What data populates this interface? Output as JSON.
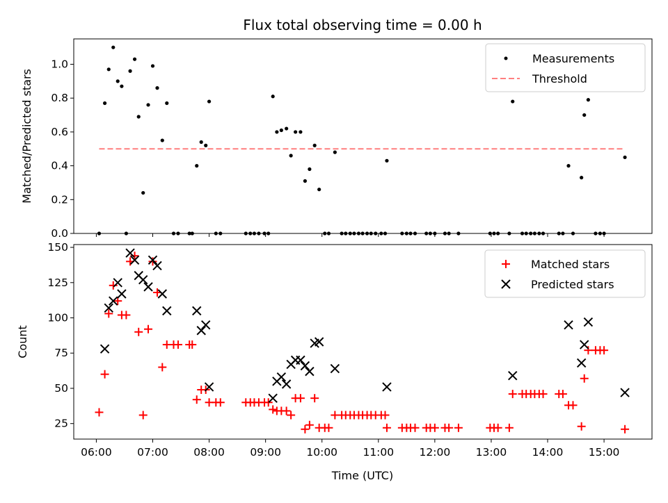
{
  "chart_data": [
    {
      "type": "scatter",
      "title": "Flux total observing time = 0.00 h",
      "xlabel": "",
      "ylabel": "Matched/Predicted stars",
      "xlim": [
        5.6,
        15.85
      ],
      "ylim": [
        0,
        1.15
      ],
      "yticks": [
        0.0,
        0.2,
        0.4,
        0.6,
        0.8,
        1.0
      ],
      "yticklabels": [
        "0.0",
        "0.2",
        "0.4",
        "0.6",
        "0.8",
        "1.0"
      ],
      "legend_position": "top-right",
      "series": [
        {
          "name": "Measurements",
          "kind": "scatter",
          "color": "#000000",
          "marker": "dot",
          "points": [
            [
              6.05,
              0.0
            ],
            [
              6.15,
              0.77
            ],
            [
              6.22,
              0.97
            ],
            [
              6.3,
              1.1
            ],
            [
              6.38,
              0.9
            ],
            [
              6.45,
              0.87
            ],
            [
              6.53,
              0.0
            ],
            [
              6.6,
              0.96
            ],
            [
              6.68,
              1.03
            ],
            [
              6.75,
              0.69
            ],
            [
              6.83,
              0.24
            ],
            [
              6.92,
              0.76
            ],
            [
              7.0,
              0.99
            ],
            [
              7.08,
              0.86
            ],
            [
              7.17,
              0.55
            ],
            [
              7.25,
              0.77
            ],
            [
              7.37,
              0.0
            ],
            [
              7.45,
              0.0
            ],
            [
              7.65,
              0.0
            ],
            [
              7.7,
              0.0
            ],
            [
              7.78,
              0.4
            ],
            [
              7.86,
              0.54
            ],
            [
              7.94,
              0.52
            ],
            [
              8.0,
              0.78
            ],
            [
              8.12,
              0.0
            ],
            [
              8.2,
              0.0
            ],
            [
              8.65,
              0.0
            ],
            [
              8.73,
              0.0
            ],
            [
              8.8,
              0.0
            ],
            [
              8.88,
              0.0
            ],
            [
              8.98,
              0.0
            ],
            [
              9.05,
              0.0
            ],
            [
              9.13,
              0.81
            ],
            [
              9.2,
              0.6
            ],
            [
              9.28,
              0.61
            ],
            [
              9.37,
              0.62
            ],
            [
              9.45,
              0.46
            ],
            [
              9.53,
              0.6
            ],
            [
              9.62,
              0.6
            ],
            [
              9.7,
              0.31
            ],
            [
              9.78,
              0.38
            ],
            [
              9.87,
              0.52
            ],
            [
              9.95,
              0.26
            ],
            [
              10.05,
              0.0
            ],
            [
              10.12,
              0.0
            ],
            [
              10.23,
              0.48
            ],
            [
              10.35,
              0.0
            ],
            [
              10.42,
              0.0
            ],
            [
              10.5,
              0.0
            ],
            [
              10.57,
              0.0
            ],
            [
              10.65,
              0.0
            ],
            [
              10.72,
              0.0
            ],
            [
              10.8,
              0.0
            ],
            [
              10.87,
              0.0
            ],
            [
              10.95,
              0.0
            ],
            [
              11.05,
              0.0
            ],
            [
              11.12,
              0.0
            ],
            [
              11.15,
              0.43
            ],
            [
              11.42,
              0.0
            ],
            [
              11.5,
              0.0
            ],
            [
              11.57,
              0.0
            ],
            [
              11.65,
              0.0
            ],
            [
              11.85,
              0.0
            ],
            [
              11.92,
              0.0
            ],
            [
              12.0,
              0.0
            ],
            [
              12.18,
              0.0
            ],
            [
              12.25,
              0.0
            ],
            [
              12.42,
              0.0
            ],
            [
              12.98,
              0.0
            ],
            [
              13.05,
              0.0
            ],
            [
              13.12,
              0.0
            ],
            [
              13.32,
              0.0
            ],
            [
              13.38,
              0.78
            ],
            [
              13.55,
              0.0
            ],
            [
              13.62,
              0.0
            ],
            [
              13.7,
              0.0
            ],
            [
              13.77,
              0.0
            ],
            [
              13.85,
              0.0
            ],
            [
              13.92,
              0.0
            ],
            [
              14.2,
              0.0
            ],
            [
              14.27,
              0.0
            ],
            [
              14.37,
              0.4
            ],
            [
              14.45,
              0.0
            ],
            [
              14.6,
              0.33
            ],
            [
              14.65,
              0.7
            ],
            [
              14.72,
              0.79
            ],
            [
              14.85,
              0.0
            ],
            [
              14.93,
              0.0
            ],
            [
              15.0,
              0.0
            ],
            [
              15.37,
              0.45
            ]
          ]
        },
        {
          "name": "Threshold",
          "kind": "dashed-line",
          "color": "#ff7f7f",
          "x": [
            6.05,
            15.37
          ],
          "y": [
            0.5,
            0.5
          ]
        }
      ]
    },
    {
      "type": "scatter",
      "title": "",
      "xlabel": "Time (UTC)",
      "ylabel": "Count",
      "xlim": [
        5.6,
        15.85
      ],
      "ylim": [
        14,
        152
      ],
      "yticks": [
        25,
        50,
        75,
        100,
        125,
        150
      ],
      "yticklabels": [
        "25",
        "50",
        "75",
        "100",
        "125",
        "150"
      ],
      "xticks": [
        6,
        7,
        8,
        9,
        10,
        11,
        12,
        13,
        14,
        15
      ],
      "xticklabels": [
        "06:00",
        "07:00",
        "08:00",
        "09:00",
        "10:00",
        "11:00",
        "12:00",
        "13:00",
        "14:00",
        "15:00"
      ],
      "legend_position": "top-right",
      "series": [
        {
          "name": "Matched stars",
          "kind": "scatter",
          "color": "#ff0000",
          "marker": "plus",
          "points": [
            [
              6.05,
              33
            ],
            [
              6.15,
              60
            ],
            [
              6.22,
              103
            ],
            [
              6.3,
              123
            ],
            [
              6.38,
              112
            ],
            [
              6.45,
              102
            ],
            [
              6.53,
              102
            ],
            [
              6.6,
              140
            ],
            [
              6.68,
              144
            ],
            [
              6.75,
              90
            ],
            [
              6.83,
              31
            ],
            [
              6.92,
              92
            ],
            [
              7.0,
              140
            ],
            [
              7.08,
              118
            ],
            [
              7.17,
              65
            ],
            [
              7.25,
              81
            ],
            [
              7.37,
              81
            ],
            [
              7.45,
              81
            ],
            [
              7.65,
              81
            ],
            [
              7.7,
              81
            ],
            [
              7.78,
              42
            ],
            [
              7.86,
              49
            ],
            [
              7.94,
              49
            ],
            [
              8.0,
              40
            ],
            [
              8.12,
              40
            ],
            [
              8.2,
              40
            ],
            [
              8.65,
              40
            ],
            [
              8.73,
              40
            ],
            [
              8.8,
              40
            ],
            [
              8.88,
              40
            ],
            [
              8.98,
              40
            ],
            [
              9.05,
              40
            ],
            [
              9.13,
              35
            ],
            [
              9.2,
              34
            ],
            [
              9.28,
              34
            ],
            [
              9.37,
              34
            ],
            [
              9.45,
              31
            ],
            [
              9.53,
              43
            ],
            [
              9.62,
              43
            ],
            [
              9.7,
              21
            ],
            [
              9.78,
              24
            ],
            [
              9.87,
              43
            ],
            [
              9.95,
              22
            ],
            [
              10.05,
              22
            ],
            [
              10.12,
              22
            ],
            [
              10.23,
              31
            ],
            [
              10.35,
              31
            ],
            [
              10.42,
              31
            ],
            [
              10.5,
              31
            ],
            [
              10.57,
              31
            ],
            [
              10.65,
              31
            ],
            [
              10.72,
              31
            ],
            [
              10.8,
              31
            ],
            [
              10.87,
              31
            ],
            [
              10.95,
              31
            ],
            [
              11.05,
              31
            ],
            [
              11.12,
              31
            ],
            [
              11.15,
              22
            ],
            [
              11.42,
              22
            ],
            [
              11.5,
              22
            ],
            [
              11.57,
              22
            ],
            [
              11.65,
              22
            ],
            [
              11.85,
              22
            ],
            [
              11.92,
              22
            ],
            [
              12.0,
              22
            ],
            [
              12.18,
              22
            ],
            [
              12.25,
              22
            ],
            [
              12.42,
              22
            ],
            [
              12.98,
              22
            ],
            [
              13.05,
              22
            ],
            [
              13.12,
              22
            ],
            [
              13.32,
              22
            ],
            [
              13.38,
              46
            ],
            [
              13.55,
              46
            ],
            [
              13.62,
              46
            ],
            [
              13.7,
              46
            ],
            [
              13.77,
              46
            ],
            [
              13.85,
              46
            ],
            [
              13.92,
              46
            ],
            [
              14.2,
              46
            ],
            [
              14.27,
              46
            ],
            [
              14.37,
              38
            ],
            [
              14.45,
              38
            ],
            [
              14.6,
              23
            ],
            [
              14.65,
              57
            ],
            [
              14.72,
              77
            ],
            [
              14.85,
              77
            ],
            [
              14.93,
              77
            ],
            [
              15.0,
              77
            ],
            [
              15.37,
              21
            ]
          ]
        },
        {
          "name": "Predicted stars",
          "kind": "scatter",
          "color": "#000000",
          "marker": "x",
          "points": [
            [
              6.15,
              78
            ],
            [
              6.22,
              107
            ],
            [
              6.3,
              112
            ],
            [
              6.38,
              125
            ],
            [
              6.45,
              117
            ],
            [
              6.6,
              146
            ],
            [
              6.68,
              141
            ],
            [
              6.75,
              130
            ],
            [
              6.83,
              127
            ],
            [
              6.92,
              122
            ],
            [
              7.0,
              141
            ],
            [
              7.08,
              137
            ],
            [
              7.17,
              117
            ],
            [
              7.25,
              105
            ],
            [
              7.78,
              105
            ],
            [
              7.86,
              91
            ],
            [
              7.94,
              95
            ],
            [
              8.0,
              51
            ],
            [
              9.13,
              43
            ],
            [
              9.2,
              55
            ],
            [
              9.28,
              58
            ],
            [
              9.37,
              53
            ],
            [
              9.45,
              67
            ],
            [
              9.53,
              70
            ],
            [
              9.62,
              70
            ],
            [
              9.7,
              66
            ],
            [
              9.78,
              62
            ],
            [
              9.87,
              82
            ],
            [
              9.95,
              83
            ],
            [
              10.23,
              64
            ],
            [
              11.15,
              51
            ],
            [
              13.38,
              59
            ],
            [
              14.37,
              95
            ],
            [
              14.6,
              68
            ],
            [
              14.65,
              81
            ],
            [
              14.72,
              97
            ],
            [
              15.37,
              47
            ]
          ]
        }
      ]
    }
  ]
}
